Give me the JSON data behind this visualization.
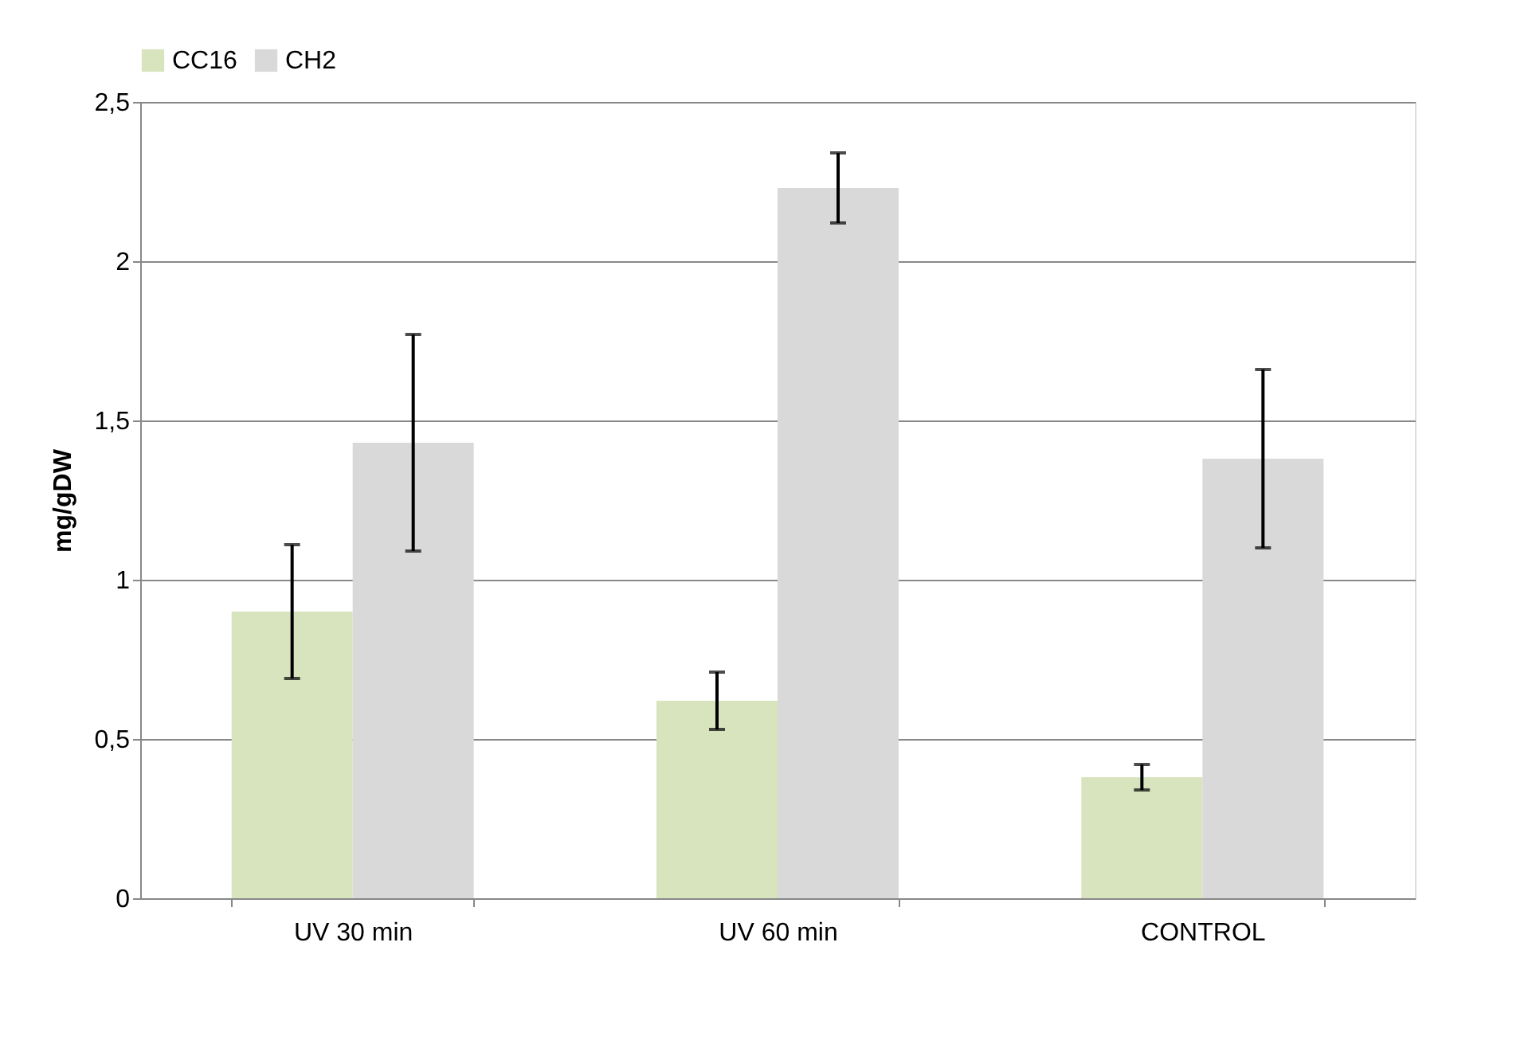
{
  "chart_data": {
    "type": "bar",
    "ylabel": "mg/gDW",
    "categories": [
      "UV 30 min",
      "UV 60 min",
      "CONTROL"
    ],
    "series": [
      {
        "name": "CC16",
        "color": "#d7e4bd",
        "values": [
          0.9,
          0.62,
          0.38
        ],
        "errors": [
          0.21,
          0.09,
          0.04
        ]
      },
      {
        "name": "CH2",
        "color": "#d9d9d9",
        "values": [
          1.43,
          2.23,
          1.38
        ],
        "errors": [
          0.34,
          0.11,
          0.28
        ]
      }
    ],
    "ylim": [
      0,
      2.5
    ],
    "yticks": [
      0,
      {
        "value": 0.5,
        "label": "0,5"
      },
      1,
      {
        "value": 1.5,
        "label": "1,5"
      },
      2,
      {
        "value": 2.5,
        "label": "2,5"
      }
    ],
    "grid": "y",
    "legend": "top"
  }
}
